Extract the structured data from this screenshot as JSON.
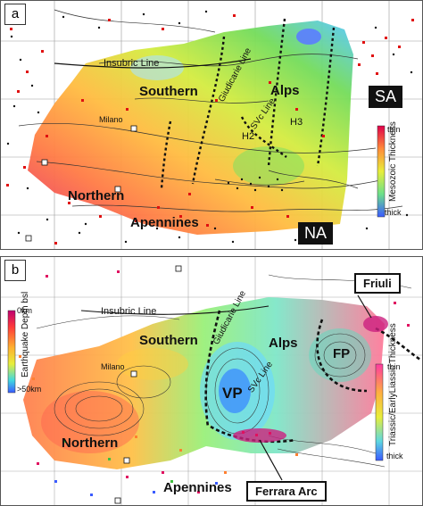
{
  "panel_a": {
    "label": "a",
    "regions": {
      "southern": "Southern",
      "alps": "Alps",
      "northern": "Northern",
      "apennines": "Apennines"
    },
    "lines": {
      "insubric": "Insubric Line",
      "giudicarie": "Giudicarie Line",
      "svc": "SVc Line"
    },
    "places": {
      "milano": "Milano",
      "h2": "H2",
      "h3": "H3"
    },
    "badges": {
      "sa": "SA",
      "na": "NA"
    },
    "legend": {
      "top": "thin",
      "bottom": "thick",
      "title": "Mesozoic Thickness"
    }
  },
  "panel_b": {
    "label": "b",
    "regions": {
      "southern": "Southern",
      "alps": "Alps",
      "northern": "Northern",
      "apennines": "Apennines"
    },
    "lines": {
      "insubric": "Insubric Line",
      "giudicarie": "Giudicarie Line",
      "svc": "SVc Line"
    },
    "places": {
      "milano": "Milano",
      "vp": "VP",
      "fp": "FP"
    },
    "callouts": {
      "friuli": "Friuli",
      "ferrara": "Ferrara Arc"
    },
    "depth_legend": {
      "top": "0km",
      "bottom": ">50km",
      "title": "Earthquake Depth bsl"
    },
    "thickness_legend": {
      "top": "thin",
      "bottom": "thick",
      "title": "Triassic/EarlyLiassic Thickness"
    }
  },
  "colors": {
    "thin": "#e0004a",
    "mid_red": "#ff6633",
    "orange": "#ffa040",
    "yellow": "#e8ee3a",
    "green": "#7fe060",
    "cyan": "#50d8e8",
    "thick": "#3a5bff",
    "quake": "#e01010",
    "fault": "#111111"
  }
}
